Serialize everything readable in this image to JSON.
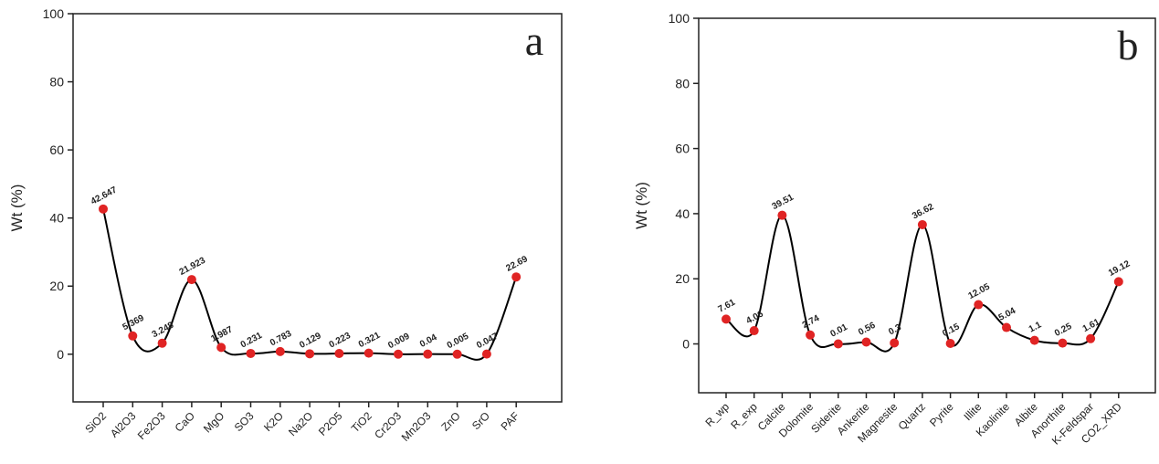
{
  "chart_data": [
    {
      "type": "line",
      "annotation": "a",
      "y_label": "Wt (%)",
      "categories": [
        "SiO2",
        "Al2O3",
        "Fe2O3",
        "CaO",
        "MgO",
        "SO3",
        "K2O",
        "Na2O",
        "P2O5",
        "TiO2",
        "Cr2O3",
        "Mn2O3",
        "ZnO",
        "SrO",
        "PAF"
      ],
      "values": [
        42.647,
        5.369,
        3.248,
        21.923,
        1.987,
        0.231,
        0.783,
        0.129,
        0.223,
        0.321,
        0.009,
        0.04,
        0.005,
        0.047,
        22.69
      ],
      "color": "#e02424",
      "line_color": "#000000",
      "ylim": [
        -14,
        100
      ],
      "yticks": [
        0,
        20,
        40,
        60,
        80,
        100
      ]
    },
    {
      "type": "line",
      "annotation": "b",
      "y_label": "Wt (%)",
      "categories": [
        "R_wp",
        "R_exp",
        "Calcite",
        "Dolomite",
        "Siderite",
        "Ankerite",
        "Magnesite",
        "Quartz",
        "Pyrite",
        "Illite",
        "Kaolinite",
        "Albite",
        "Anorthite",
        "K-Feldspar",
        "CO2_XRD"
      ],
      "values": [
        7.61,
        4.06,
        39.51,
        2.74,
        0.01,
        0.56,
        0.3,
        36.62,
        0.15,
        12.05,
        5.04,
        1.1,
        0.25,
        1.61,
        19.12
      ],
      "color": "#e02424",
      "line_color": "#000000",
      "ylim": [
        -15,
        100
      ],
      "yticks": [
        0,
        20,
        40,
        60,
        80,
        100
      ]
    }
  ]
}
